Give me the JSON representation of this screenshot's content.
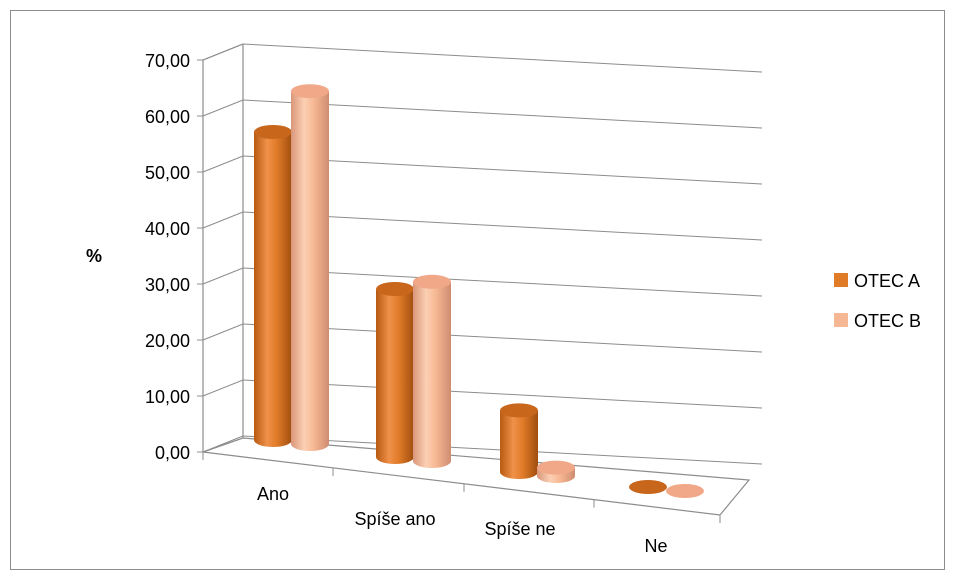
{
  "chart_data": {
    "type": "bar",
    "style": "3d-cylinder",
    "categories": [
      "Ano",
      "Spíše ano",
      "Spíše ne",
      "Ne"
    ],
    "series": [
      {
        "name": "OTEC A",
        "values": [
          55.0,
          30.0,
          11.0,
          0.0
        ],
        "color": "#e07b28"
      },
      {
        "name": "OTEC B",
        "values": [
          63.0,
          32.0,
          1.5,
          0.0
        ],
        "color": "#f6b894"
      }
    ],
    "ylabel": "%",
    "xlabel": "",
    "ylim": [
      0,
      70
    ],
    "yticks": [
      "0,00",
      "10,00",
      "20,00",
      "30,00",
      "40,00",
      "50,00",
      "60,00",
      "70,00"
    ],
    "grid": true,
    "legend": "right"
  }
}
